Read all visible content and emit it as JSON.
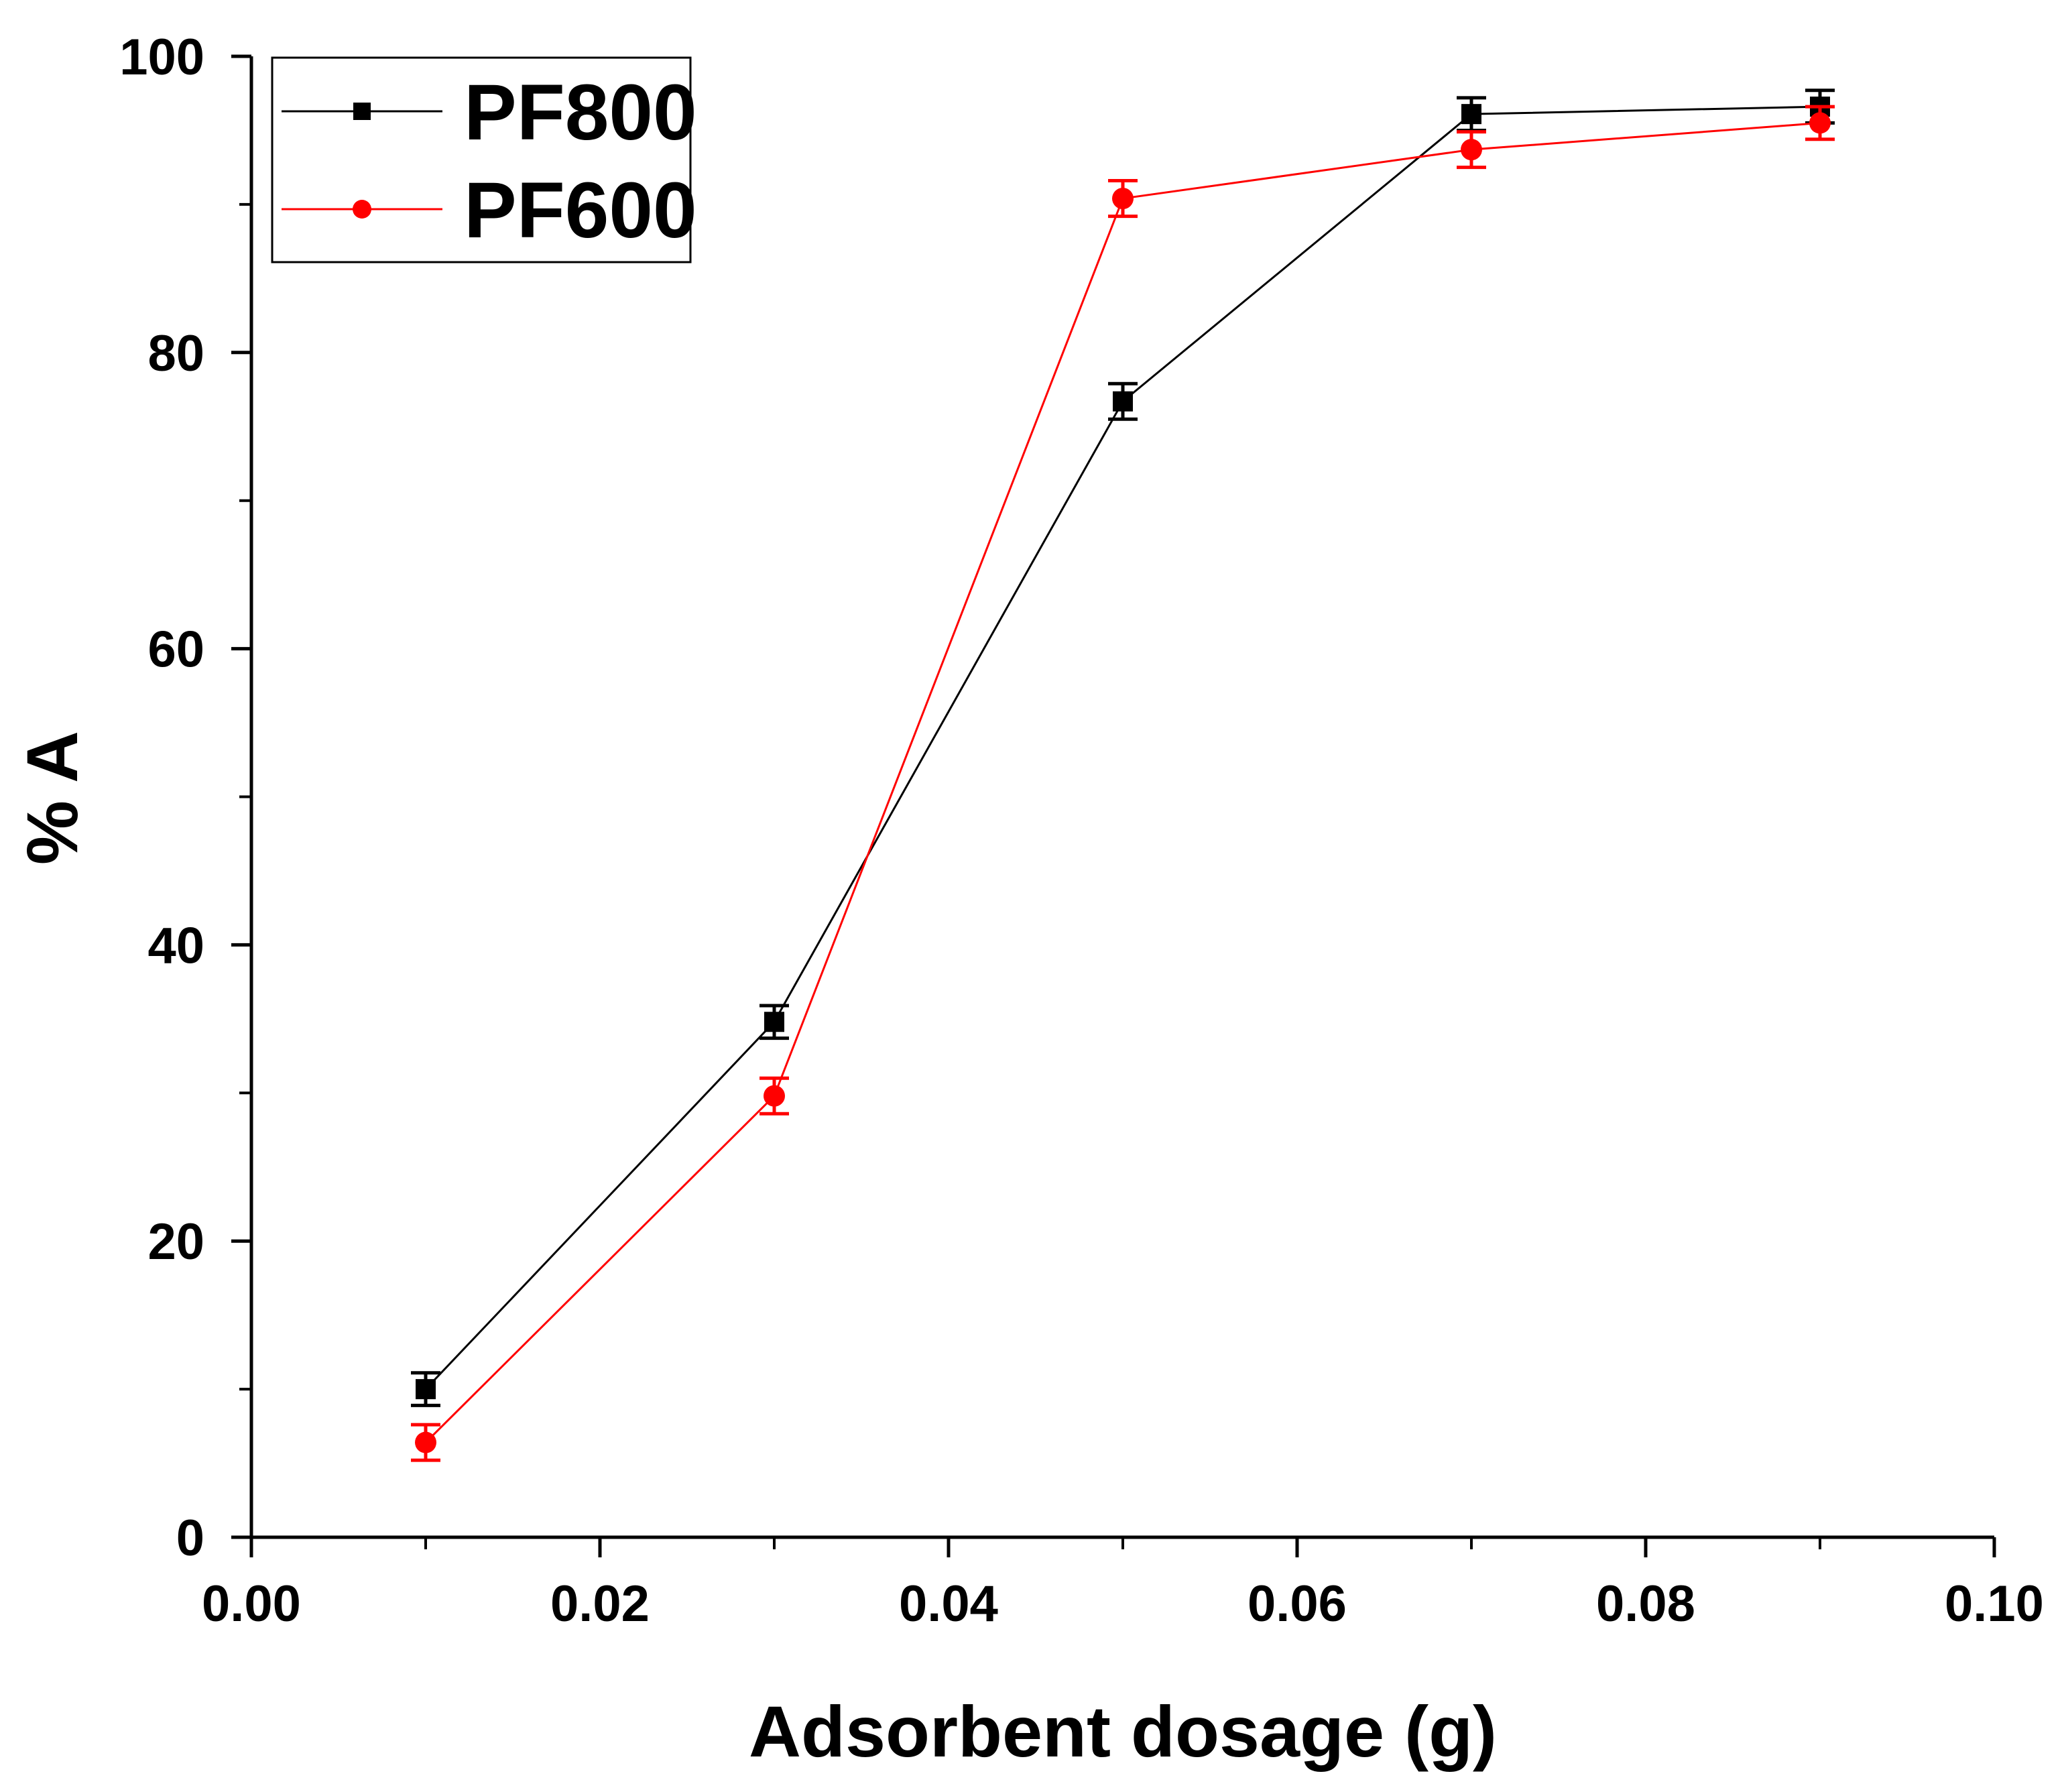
{
  "chart_data": {
    "type": "line",
    "title": "",
    "xlabel": "Adsorbent dosage (g)",
    "ylabel": "% A",
    "xlim": [
      0.0,
      0.1
    ],
    "ylim": [
      0,
      100
    ],
    "x_ticks": [
      0.0,
      0.02,
      0.04,
      0.06,
      0.08,
      0.1
    ],
    "x_tick_labels": [
      "0.00",
      "0.02",
      "0.04",
      "0.06",
      "0.08",
      "0.10"
    ],
    "x_minor_ticks": [
      0.01,
      0.03,
      0.05,
      0.07,
      0.09
    ],
    "y_ticks": [
      0,
      20,
      40,
      60,
      80,
      100
    ],
    "y_tick_labels": [
      "0",
      "20",
      "40",
      "60",
      "80",
      "100"
    ],
    "y_minor_ticks": [
      10,
      30,
      50,
      70,
      90
    ],
    "grid": false,
    "legend_position": "top-left",
    "x": [
      0.01,
      0.03,
      0.05,
      0.07,
      0.09
    ],
    "series": [
      {
        "name": "PF800",
        "color": "#000000",
        "marker": "square",
        "values": [
          10.0,
          34.8,
          76.7,
          96.1,
          96.6
        ],
        "errors": [
          1.1,
          1.1,
          1.2,
          1.1,
          1.1
        ]
      },
      {
        "name": "PF600",
        "color": "#ff0000",
        "marker": "circle",
        "values": [
          6.4,
          29.8,
          90.4,
          93.7,
          95.5
        ],
        "errors": [
          1.2,
          1.2,
          1.2,
          1.2,
          1.1
        ]
      }
    ]
  }
}
